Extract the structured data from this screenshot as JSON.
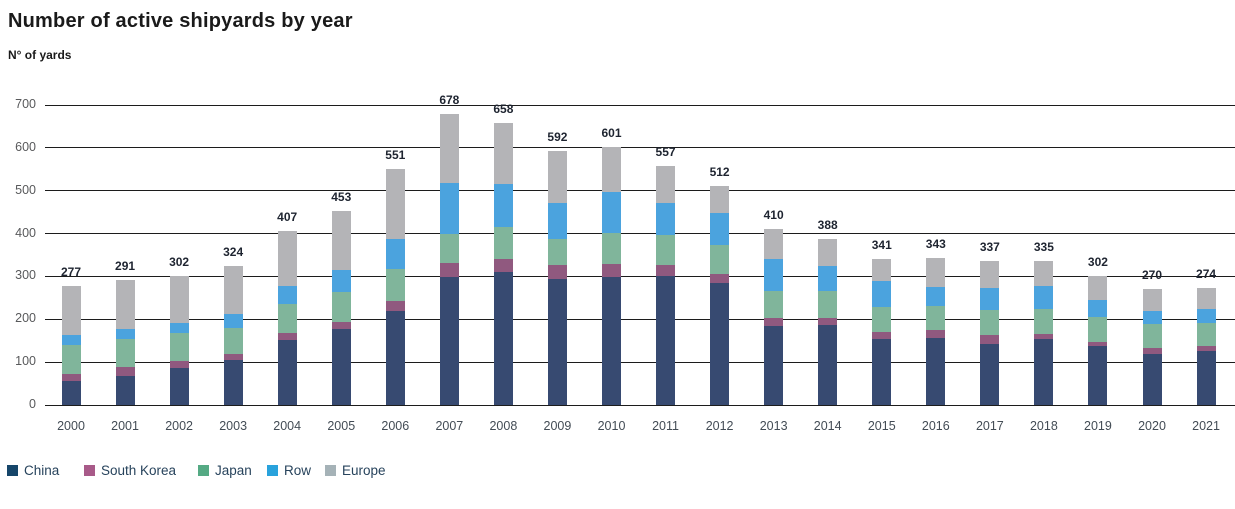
{
  "header": {
    "title": "Number of active shipyards by year",
    "subtitle": "N° of yards"
  },
  "chart_data": {
    "type": "bar",
    "stacked": true,
    "title": "Number of active shipyards by year",
    "ylabel": "N° of yards",
    "xlabel": "",
    "ylim": [
      0,
      700
    ],
    "yticks": [
      0,
      100,
      200,
      300,
      400,
      500,
      600,
      700
    ],
    "grid": true,
    "legend_position": "bottom",
    "categories": [
      "2000",
      "2001",
      "2002",
      "2003",
      "2004",
      "2005",
      "2006",
      "2007",
      "2008",
      "2009",
      "2010",
      "2011",
      "2012",
      "2013",
      "2014",
      "2015",
      "2016",
      "2017",
      "2018",
      "2019",
      "2020",
      "2021"
    ],
    "series": [
      {
        "name": "China",
        "color": "#374a71",
        "values": [
          55,
          68,
          86,
          106,
          151,
          177,
          219,
          299,
          310,
          293,
          299,
          301,
          284,
          185,
          187,
          154,
          156,
          142,
          153,
          138,
          120,
          127
        ]
      },
      {
        "name": "South Korea",
        "color": "#90597f",
        "values": [
          18,
          20,
          16,
          13,
          18,
          17,
          24,
          33,
          30,
          33,
          31,
          26,
          22,
          17,
          17,
          16,
          18,
          21,
          12,
          8,
          12,
          11
        ]
      },
      {
        "name": "Japan",
        "color": "#80b59b",
        "values": [
          66,
          67,
          66,
          61,
          67,
          70,
          75,
          68,
          76,
          62,
          72,
          70,
          67,
          65,
          63,
          58,
          58,
          58,
          60,
          60,
          57,
          53
        ]
      },
      {
        "name": "Row",
        "color": "#4ba3de",
        "values": [
          25,
          22,
          24,
          32,
          42,
          51,
          70,
          119,
          100,
          84,
          95,
          75,
          75,
          74,
          58,
          62,
          44,
          51,
          53,
          39,
          31,
          33
        ]
      },
      {
        "name": "Europe",
        "color": "#b4b4b7",
        "values": [
          113,
          114,
          110,
          112,
          129,
          138,
          163,
          159,
          142,
          120,
          104,
          85,
          64,
          69,
          63,
          51,
          67,
          65,
          57,
          57,
          50,
          50
        ]
      }
    ],
    "totals": [
      277,
      291,
      302,
      324,
      407,
      453,
      551,
      678,
      658,
      592,
      601,
      557,
      512,
      410,
      388,
      341,
      343,
      337,
      335,
      302,
      270,
      274
    ]
  },
  "legend": {
    "items": [
      {
        "label": "China",
        "color": "#16466a"
      },
      {
        "label": "South Korea",
        "color": "#a85a89"
      },
      {
        "label": "Japan",
        "color": "#55aa84"
      },
      {
        "label": "Row",
        "color": "#29a2dc"
      },
      {
        "label": "Europe",
        "color": "#a5b2b7"
      }
    ],
    "offsets": [
      7,
      84,
      198,
      267,
      325
    ]
  }
}
